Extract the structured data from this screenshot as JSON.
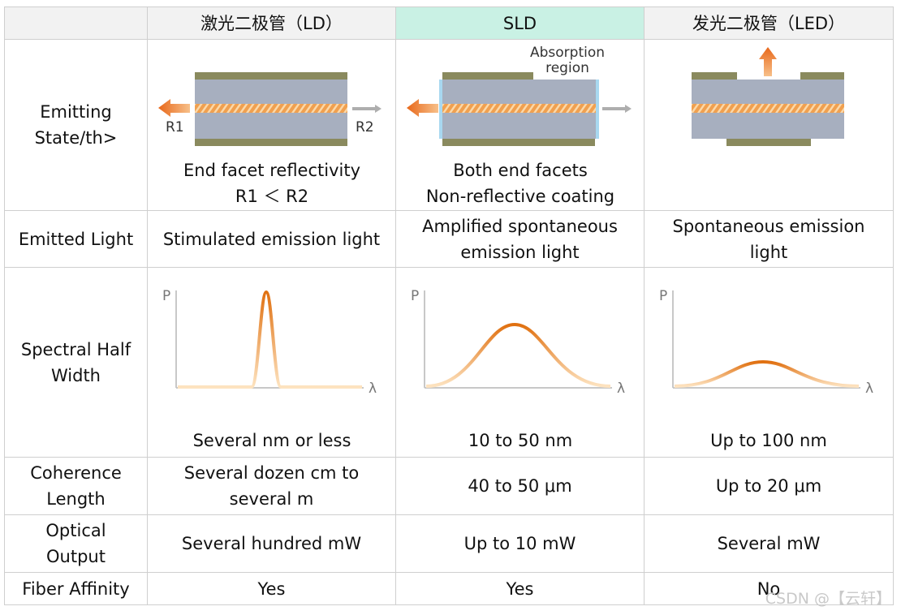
{
  "headers": {
    "corner": "",
    "ld": "激光二极管（LD）",
    "sld": "SLD",
    "led": "发光二极管（LED）"
  },
  "rows": {
    "emitting": {
      "label": "Emitting State/th>",
      "ld": {
        "r1": "R1",
        "r2": "R2",
        "caption_line1": "End facet reflectivity",
        "caption_line2": "R1 ＜ R2"
      },
      "sld": {
        "absorption_line1": "Absorption",
        "absorption_line2": "region",
        "caption_line1": "Both end facets",
        "caption_line2": "Non-reflective coating"
      },
      "led": {}
    },
    "emitted_light": {
      "label": "Emitted Light",
      "ld": "Stimulated emission light",
      "sld_line1": "Amplified spontaneous",
      "sld_line2": "emission light",
      "led_line1": "Spontaneous emission",
      "led_line2": "light"
    },
    "spectral": {
      "label_line1": "Spectral Half",
      "label_line2": "Width",
      "axis_y": "P",
      "axis_x": "λ",
      "ld": "Several nm or less",
      "sld": "10 to 50 nm",
      "led": "Up to 100 nm"
    },
    "coherence": {
      "label_line1": "Coherence",
      "label_line2": "Length",
      "ld_line1": "Several dozen cm to",
      "ld_line2": "several m",
      "sld": "40 to 50 μm",
      "led": "Up to 20 μm"
    },
    "optical": {
      "label_line1": "Optical",
      "label_line2": "Output",
      "ld": "Several hundred mW",
      "sld": "Up to 10 mW",
      "led": "Several mW"
    },
    "fiber": {
      "label": "Fiber Affinity",
      "ld": "Yes",
      "sld": "Yes",
      "led": "No"
    }
  },
  "watermark": "CSDN @【云轩】",
  "colors": {
    "header_bg": "#f2f2f2",
    "sld_header_bg": "#c9f1e4",
    "orange": "#e8791e",
    "chip_gray": "#a7afbf",
    "electrode": "#8a8a5e"
  }
}
